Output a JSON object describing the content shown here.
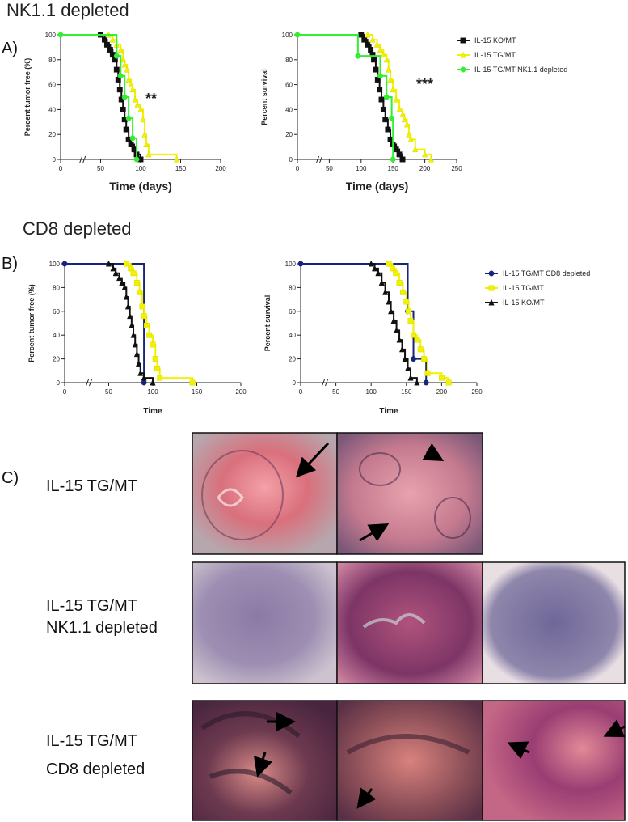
{
  "headings": {
    "a_title": "NK1.1 depleted",
    "b_title": "CD8 depleted"
  },
  "panel_labels": [
    "A)",
    "B)",
    "C)"
  ],
  "chart_data": [
    {
      "type": "line",
      "step": true,
      "y_label": "Percent tumor free (%)",
      "x_label": "Time (days)",
      "annotation": "**",
      "xlim": [
        0,
        200
      ],
      "xticks": [
        0,
        50,
        100,
        150,
        200
      ],
      "ylim": [
        0,
        100
      ],
      "yticks": [
        0,
        20,
        40,
        60,
        80,
        100
      ],
      "grid": false,
      "legend": false,
      "series": [
        {
          "color": "#111111",
          "marker": "square",
          "x": [
            50,
            55,
            58,
            62,
            65,
            68,
            70,
            72,
            74,
            76,
            78,
            80,
            82,
            85,
            88,
            92,
            95,
            100
          ],
          "values": [
            100,
            96,
            92,
            88,
            84,
            80,
            72,
            64,
            56,
            48,
            40,
            32,
            24,
            16,
            12,
            8,
            4,
            0
          ]
        },
        {
          "color": "#f2f200",
          "marker": "triangle",
          "x": [
            60,
            65,
            70,
            75,
            78,
            80,
            83,
            85,
            88,
            90,
            93,
            96,
            100,
            103,
            105,
            107,
            110,
            145
          ],
          "values": [
            100,
            96,
            92,
            88,
            80,
            76,
            72,
            64,
            60,
            56,
            48,
            44,
            40,
            32,
            20,
            12,
            4,
            0
          ]
        },
        {
          "color": "#33ee33",
          "marker": "circle",
          "x": [
            0,
            70,
            75,
            80,
            85,
            90,
            95
          ],
          "values": [
            100,
            83,
            67,
            50,
            33,
            17,
            0
          ]
        }
      ]
    },
    {
      "type": "line",
      "step": true,
      "y_label": "Percent survival",
      "x_label": "Time (days)",
      "annotation": "***",
      "xlim": [
        0,
        250
      ],
      "xticks": [
        0,
        50,
        100,
        150,
        200,
        250
      ],
      "ylim": [
        0,
        100
      ],
      "yticks": [
        0,
        20,
        40,
        60,
        80,
        100
      ],
      "grid": false,
      "legend": true,
      "series": [
        {
          "name": "IL-15 KO/MT",
          "color": "#111111",
          "marker": "square",
          "x": [
            100,
            105,
            110,
            115,
            118,
            120,
            123,
            126,
            129,
            132,
            135,
            138,
            142,
            146,
            150,
            155,
            160,
            165
          ],
          "values": [
            100,
            96,
            92,
            88,
            84,
            80,
            72,
            64,
            56,
            48,
            40,
            32,
            24,
            16,
            12,
            8,
            4,
            0
          ]
        },
        {
          "name": "IL-15 TG/MT",
          "color": "#f2f200",
          "marker": "triangle",
          "x": [
            110,
            118,
            125,
            130,
            135,
            140,
            143,
            146,
            150,
            155,
            160,
            165,
            168,
            172,
            175,
            178,
            185,
            200,
            210
          ],
          "values": [
            100,
            96,
            92,
            88,
            84,
            80,
            72,
            64,
            56,
            48,
            40,
            36,
            32,
            28,
            20,
            16,
            8,
            4,
            0
          ]
        },
        {
          "name": "IL-15 TG/MT NK1.1 depleted",
          "color": "#33ee33",
          "marker": "circle",
          "x": [
            0,
            95,
            130,
            140,
            148,
            150
          ],
          "values": [
            100,
            83,
            67,
            50,
            33,
            0
          ]
        }
      ]
    },
    {
      "type": "line",
      "step": true,
      "y_label": "Percent tumor free (%)",
      "x_label": "Time",
      "xlim": [
        0,
        200
      ],
      "xticks": [
        0,
        50,
        100,
        150,
        200
      ],
      "ylim": [
        0,
        100
      ],
      "yticks": [
        0,
        20,
        40,
        60,
        80,
        100
      ],
      "grid": false,
      "legend": false,
      "series": [
        {
          "color": "#1a237e",
          "marker": "circle",
          "x": [
            0,
            90
          ],
          "values": [
            100,
            0
          ]
        },
        {
          "color": "#f2f200",
          "marker": "square",
          "x": [
            70,
            75,
            78,
            82,
            85,
            88,
            90,
            93,
            96,
            100,
            103,
            105,
            108,
            145
          ],
          "values": [
            100,
            96,
            92,
            84,
            76,
            64,
            56,
            48,
            40,
            32,
            20,
            12,
            4,
            0
          ]
        },
        {
          "color": "#111111",
          "marker": "triangle",
          "x": [
            50,
            55,
            58,
            62,
            65,
            68,
            70,
            72,
            74,
            76,
            78,
            80,
            82,
            84,
            86,
            90,
            100
          ],
          "values": [
            100,
            96,
            92,
            88,
            84,
            80,
            72,
            64,
            56,
            48,
            40,
            32,
            24,
            16,
            8,
            4,
            0
          ]
        }
      ]
    },
    {
      "type": "line",
      "step": true,
      "y_label": "Percent survival",
      "x_label": "Time",
      "xlim": [
        0,
        250
      ],
      "xticks": [
        0,
        50,
        100,
        150,
        200,
        250
      ],
      "ylim": [
        0,
        100
      ],
      "yticks": [
        0,
        20,
        40,
        60,
        80,
        100
      ],
      "grid": false,
      "legend": true,
      "series": [
        {
          "name": "IL-15 TG/MT CD8 depleted",
          "color": "#1a237e",
          "marker": "circle",
          "x": [
            0,
            152,
            160,
            178
          ],
          "values": [
            100,
            60,
            20,
            0
          ]
        },
        {
          "name": "IL-15 TG/MT",
          "color": "#f2f200",
          "marker": "square",
          "x": [
            125,
            130,
            135,
            140,
            145,
            150,
            153,
            156,
            160,
            165,
            170,
            175,
            180,
            200,
            210
          ],
          "values": [
            100,
            96,
            92,
            84,
            76,
            68,
            60,
            52,
            40,
            36,
            28,
            20,
            8,
            4,
            0
          ]
        },
        {
          "name": "IL-15 KO/MT",
          "color": "#111111",
          "marker": "triangle",
          "x": [
            100,
            105,
            110,
            115,
            120,
            125,
            128,
            132,
            136,
            140,
            144,
            148,
            152,
            156,
            165
          ],
          "values": [
            100,
            96,
            92,
            84,
            76,
            68,
            60,
            52,
            44,
            36,
            28,
            20,
            12,
            4,
            0
          ]
        }
      ]
    }
  ],
  "histology": {
    "rows": [
      {
        "label": [
          "IL-15 TG/MT"
        ]
      },
      {
        "label": [
          "IL-15 TG/MT",
          "NK1.1 depleted"
        ]
      },
      {
        "label": [
          "IL-15 TG/MT",
          "CD8 depleted"
        ]
      }
    ]
  }
}
